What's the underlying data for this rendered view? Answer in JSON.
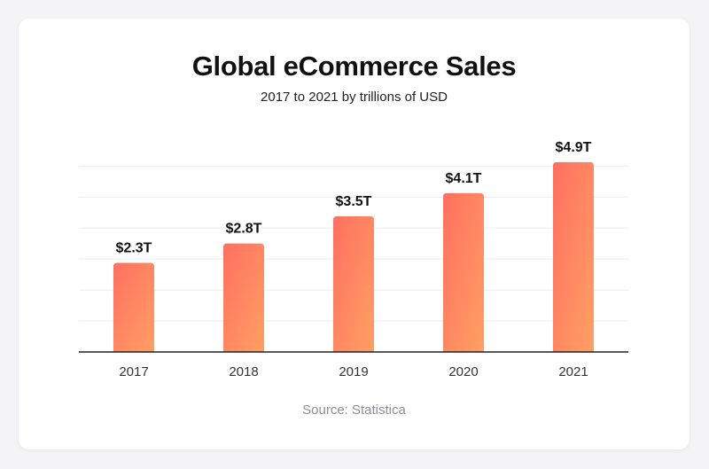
{
  "chart_data": {
    "type": "bar",
    "title": "Global eCommerce Sales",
    "subtitle": "2017 to 2021 by trillions of USD",
    "categories": [
      "2017",
      "2018",
      "2019",
      "2020",
      "2021"
    ],
    "values": [
      2.3,
      2.8,
      3.5,
      4.1,
      4.9
    ],
    "data_labels": [
      "$2.3T",
      "$2.8T",
      "$3.5T",
      "$4.1T",
      "$4.9T"
    ],
    "xlabel": "",
    "ylabel": "",
    "ylim": [
      0,
      6
    ],
    "grid": true,
    "legend": "none",
    "source": "Source: Statistica"
  },
  "colors": {
    "bar_start": "#ff6f61",
    "bar_end": "#ffa062",
    "grid": "#ececec",
    "axis": "#222222",
    "title_highlight": "#fde6da"
  }
}
